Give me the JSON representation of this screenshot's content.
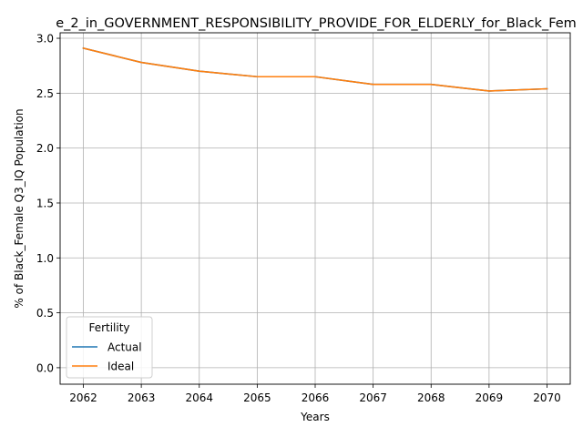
{
  "chart_data": {
    "type": "line",
    "title": "e_2_in_GOVERNMENT_RESPONSIBILITY_PROVIDE_FOR_ELDERLY_for_Black_Fem",
    "xlabel": "Years",
    "ylabel": "% of Black_Female Q3_IQ Population",
    "x": [
      2062,
      2063,
      2064,
      2065,
      2066,
      2067,
      2068,
      2069,
      2070
    ],
    "x_ticks": [
      "2062",
      "2063",
      "2064",
      "2065",
      "2066",
      "2067",
      "2068",
      "2069",
      "2070"
    ],
    "y_ticks": [
      "0.0",
      "0.5",
      "1.0",
      "1.5",
      "2.0",
      "2.5",
      "3.0"
    ],
    "ylim": [
      -0.15,
      3.05
    ],
    "grid": true,
    "legend": {
      "title": "Fertility",
      "placement": "lower-left"
    },
    "series": [
      {
        "name": "Actual",
        "color": "#1f77b4",
        "values": [
          2.91,
          2.78,
          2.7,
          2.65,
          2.65,
          2.58,
          2.58,
          2.52,
          2.54
        ]
      },
      {
        "name": "Ideal",
        "color": "#ff7f0e",
        "values": [
          2.91,
          2.78,
          2.7,
          2.65,
          2.65,
          2.58,
          2.58,
          2.52,
          2.54
        ]
      }
    ]
  }
}
